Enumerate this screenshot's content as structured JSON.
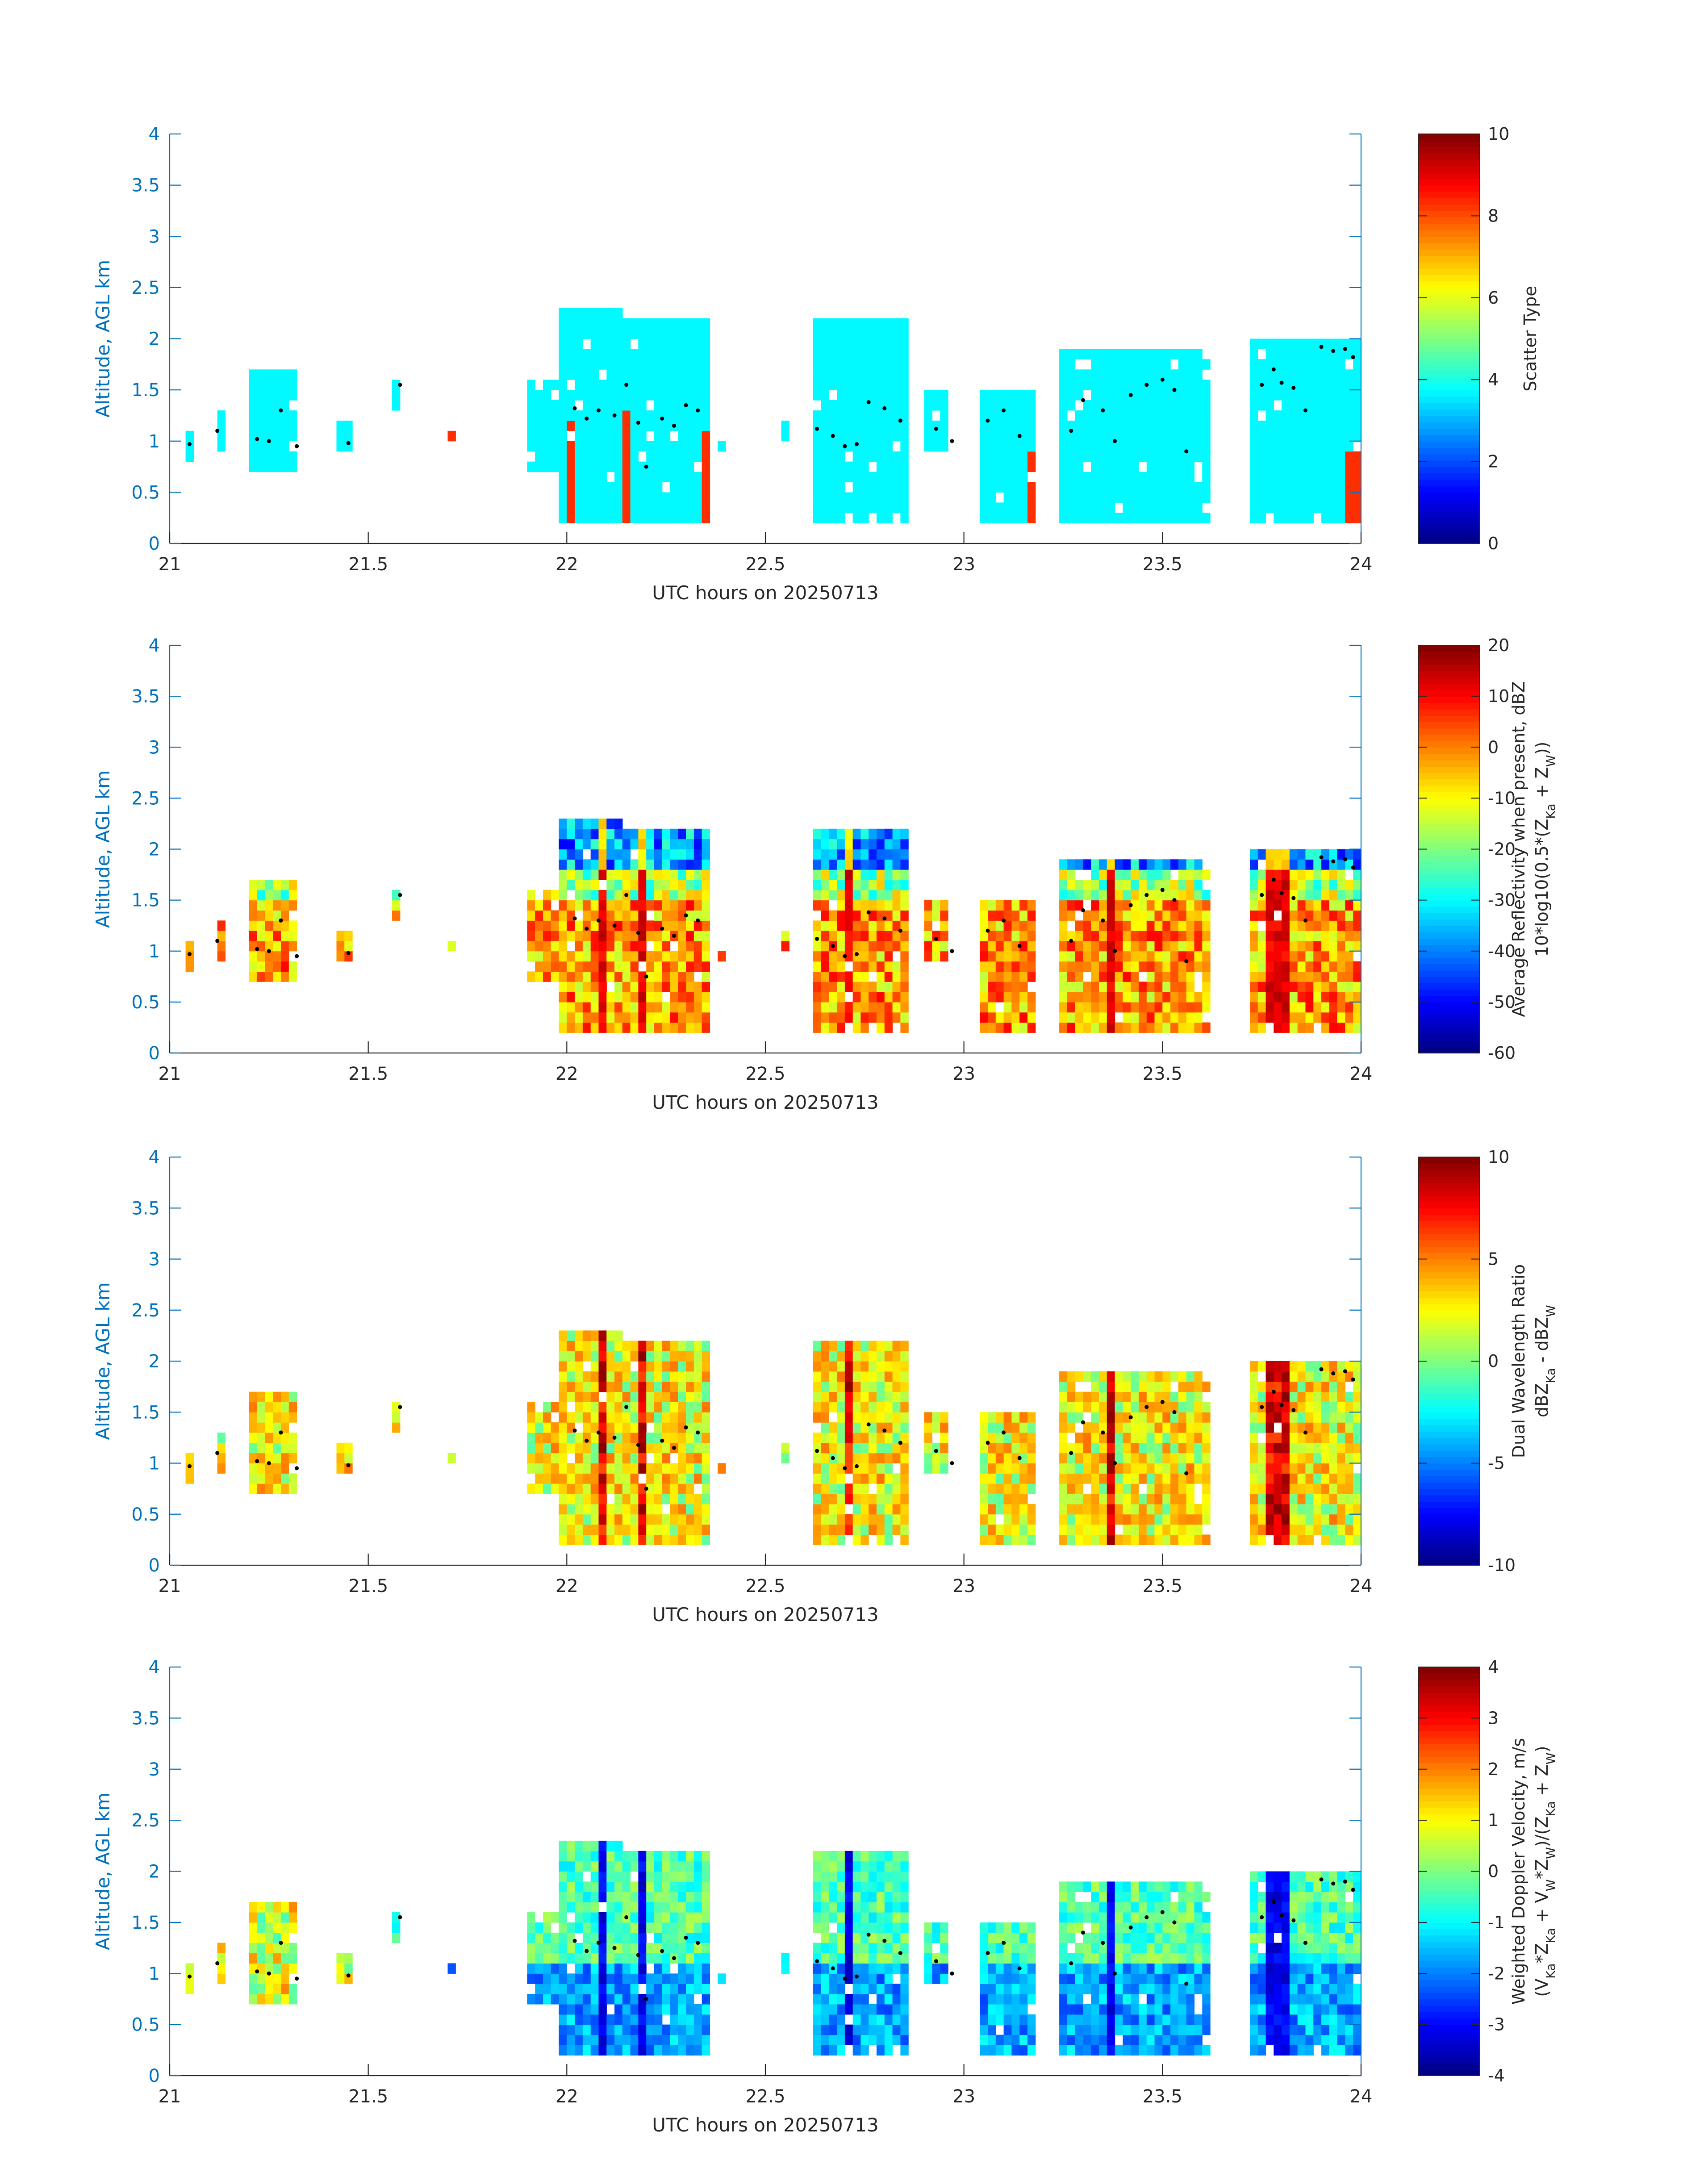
{
  "figure": {
    "background": "#ffffff",
    "axis_color": "#0072BD",
    "text_color": "#262626",
    "colormap": "jet"
  },
  "chart_data": [
    {
      "type": "heatmap",
      "xlabel": "UTC hours on 20250713",
      "ylabel": "Altitude, AGL km",
      "xlim": [
        21,
        24
      ],
      "ylim": [
        0,
        4
      ],
      "xticks": [
        "21",
        "21.5",
        "22",
        "22.5",
        "23",
        "23.5",
        "24"
      ],
      "yticks": [
        "0",
        "0.5",
        "1",
        "1.5",
        "2",
        "2.5",
        "3",
        "3.5",
        "4"
      ],
      "colorbar": {
        "label_lines": [
          "Scatter Type"
        ],
        "clim": [
          0,
          10
        ],
        "ticks": [
          "0",
          "2",
          "4",
          "6",
          "8",
          "10"
        ]
      },
      "field": "scatter_type"
    },
    {
      "type": "heatmap",
      "xlabel": "UTC hours on 20250713",
      "ylabel": "Altitude, AGL km",
      "xlim": [
        21,
        24
      ],
      "ylim": [
        0,
        4
      ],
      "xticks": [
        "21",
        "21.5",
        "22",
        "22.5",
        "23",
        "23.5",
        "24"
      ],
      "yticks": [
        "0",
        "0.5",
        "1",
        "1.5",
        "2",
        "2.5",
        "3",
        "3.5",
        "4"
      ],
      "colorbar": {
        "label_lines": [
          "Average Reflectivity when present, dBZ",
          "10*log10(0.5*(Z_Ka + Z_W))"
        ],
        "clim": [
          -60,
          20
        ],
        "ticks": [
          "-60",
          "-50",
          "-40",
          "-30",
          "-20",
          "-10",
          "0",
          "10",
          "20"
        ]
      },
      "field": "reflectivity"
    },
    {
      "type": "heatmap",
      "xlabel": "UTC hours on 20250713",
      "ylabel": "Altitude, AGL km",
      "xlim": [
        21,
        24
      ],
      "ylim": [
        0,
        4
      ],
      "xticks": [
        "21",
        "21.5",
        "22",
        "22.5",
        "23",
        "23.5",
        "24"
      ],
      "yticks": [
        "0",
        "0.5",
        "1",
        "1.5",
        "2",
        "2.5",
        "3",
        "3.5",
        "4"
      ],
      "colorbar": {
        "label_lines": [
          "Dual Wavelength Ratio",
          "dBZ_Ka - dBZ_W"
        ],
        "clim": [
          -10,
          10
        ],
        "ticks": [
          "-10",
          "-5",
          "0",
          "5",
          "10"
        ]
      },
      "field": "dwr"
    },
    {
      "type": "heatmap",
      "xlabel": "UTC hours on 20250713",
      "ylabel": "Altitude, AGL km",
      "xlim": [
        21,
        24
      ],
      "ylim": [
        0,
        4
      ],
      "xticks": [
        "21",
        "21.5",
        "22",
        "22.5",
        "23",
        "23.5",
        "24"
      ],
      "yticks": [
        "0",
        "0.5",
        "1",
        "1.5",
        "2",
        "2.5",
        "3",
        "3.5",
        "4"
      ],
      "colorbar": {
        "label_lines": [
          "Weighted Doppler Velocity, m/s",
          "(V_Ka*Z_Ka + V_W*Z_W)/(Z_Ka + Z_W)"
        ],
        "clim": [
          -4,
          4
        ],
        "ticks": [
          "-4",
          "-3",
          "-2",
          "-1",
          "0",
          "1",
          "2",
          "3",
          "4"
        ]
      },
      "field": "velocity"
    }
  ],
  "cloud_columns": [
    {
      "t0": 21.05,
      "t1": 21.07,
      "bot": 0.85,
      "top": 1.15
    },
    {
      "t0": 21.12,
      "t1": 21.14,
      "bot": 0.95,
      "top": 1.3
    },
    {
      "t0": 21.2,
      "t1": 21.33,
      "bot": 0.7,
      "top": 1.7
    },
    {
      "t0": 21.43,
      "t1": 21.46,
      "bot": 0.95,
      "top": 1.2
    },
    {
      "t0": 21.57,
      "t1": 21.59,
      "bot": 1.35,
      "top": 1.6
    },
    {
      "t0": 21.7,
      "t1": 21.72,
      "bot": 1.05,
      "top": 1.15
    },
    {
      "t0": 21.91,
      "t1": 21.99,
      "bot": 0.75,
      "top": 1.6
    },
    {
      "t0": 21.99,
      "t1": 22.14,
      "bot": 0.2,
      "top": 2.35
    },
    {
      "t0": 22.14,
      "t1": 22.36,
      "bot": 0.2,
      "top": 2.25
    },
    {
      "t0": 22.36,
      "t1": 22.4,
      "bot": 0.9,
      "top": 1.0
    },
    {
      "t0": 22.54,
      "t1": 22.56,
      "bot": 1.05,
      "top": 1.25
    },
    {
      "t0": 22.62,
      "t1": 22.87,
      "bot": 0.2,
      "top": 2.2
    },
    {
      "t0": 22.9,
      "t1": 22.96,
      "bot": 0.95,
      "top": 1.5
    },
    {
      "t0": 23.04,
      "t1": 23.18,
      "bot": 0.2,
      "top": 1.55
    },
    {
      "t0": 23.24,
      "t1": 23.63,
      "bot": 0.2,
      "top": 1.9
    },
    {
      "t0": 23.72,
      "t1": 24.0,
      "bot": 0.2,
      "top": 2.05
    }
  ],
  "melting_layer_points": [
    [
      21.05,
      0.97
    ],
    [
      21.12,
      1.1
    ],
    [
      21.22,
      1.02
    ],
    [
      21.25,
      1.0
    ],
    [
      21.28,
      1.3
    ],
    [
      21.32,
      0.95
    ],
    [
      21.45,
      0.98
    ],
    [
      21.58,
      1.55
    ],
    [
      22.02,
      1.32
    ],
    [
      22.05,
      1.22
    ],
    [
      22.08,
      1.3
    ],
    [
      22.12,
      1.25
    ],
    [
      22.15,
      1.55
    ],
    [
      22.18,
      1.18
    ],
    [
      22.2,
      0.75
    ],
    [
      22.24,
      1.22
    ],
    [
      22.27,
      1.15
    ],
    [
      22.3,
      1.35
    ],
    [
      22.33,
      1.3
    ],
    [
      22.63,
      1.12
    ],
    [
      22.67,
      1.05
    ],
    [
      22.7,
      0.95
    ],
    [
      22.73,
      0.97
    ],
    [
      22.76,
      1.38
    ],
    [
      22.8,
      1.32
    ],
    [
      22.84,
      1.2
    ],
    [
      22.93,
      1.12
    ],
    [
      22.97,
      1.0
    ],
    [
      23.06,
      1.2
    ],
    [
      23.1,
      1.3
    ],
    [
      23.14,
      1.05
    ],
    [
      23.27,
      1.1
    ],
    [
      23.3,
      1.4
    ],
    [
      23.35,
      1.3
    ],
    [
      23.38,
      1.0
    ],
    [
      23.42,
      1.45
    ],
    [
      23.46,
      1.55
    ],
    [
      23.5,
      1.6
    ],
    [
      23.53,
      1.5
    ],
    [
      23.56,
      0.9
    ],
    [
      23.75,
      1.55
    ],
    [
      23.78,
      1.7
    ],
    [
      23.8,
      1.57
    ],
    [
      23.83,
      1.52
    ],
    [
      23.86,
      1.3
    ],
    [
      23.9,
      1.92
    ],
    [
      23.93,
      1.88
    ],
    [
      23.96,
      1.9
    ],
    [
      23.98,
      1.82
    ]
  ]
}
